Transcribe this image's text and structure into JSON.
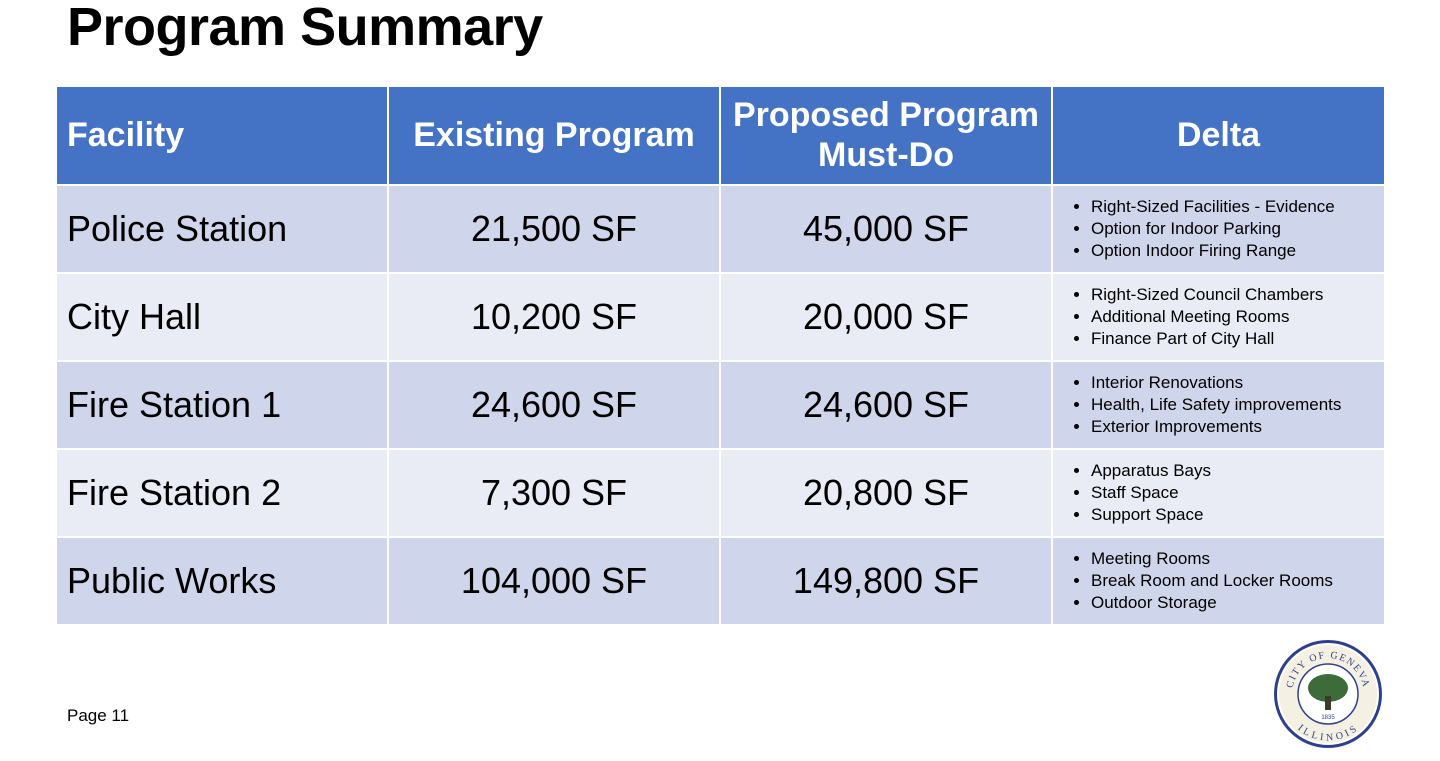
{
  "title": "Program Summary",
  "table": {
    "headers": [
      "Facility",
      "Existing Program",
      "Proposed Program Must-Do",
      "Delta"
    ],
    "rows": [
      {
        "facility": "Police Station",
        "existing": "21,500 SF",
        "proposed": "45,000 SF",
        "delta": [
          "Right-Sized Facilities - Evidence",
          "Option for Indoor Parking",
          "Option Indoor Firing Range"
        ]
      },
      {
        "facility": "City Hall",
        "existing": "10,200 SF",
        "proposed": "20,000 SF",
        "delta": [
          "Right-Sized Council Chambers",
          "Additional Meeting Rooms",
          "Finance Part of City Hall"
        ]
      },
      {
        "facility": "Fire Station 1",
        "existing": "24,600 SF",
        "proposed": "24,600 SF",
        "delta": [
          "Interior Renovations",
          "Health, Life Safety improvements",
          "Exterior Improvements"
        ]
      },
      {
        "facility": "Fire Station 2",
        "existing": "7,300 SF",
        "proposed": "20,800 SF",
        "delta": [
          "Apparatus Bays",
          "Staff Space",
          "Support Space"
        ]
      },
      {
        "facility": "Public Works",
        "existing": "104,000 SF",
        "proposed": "149,800 SF",
        "delta": [
          "Meeting Rooms",
          "Break Room and Locker Rooms",
          "Outdoor Storage"
        ]
      }
    ]
  },
  "footer": {
    "page": "Page 11"
  },
  "seal": {
    "top": "CITY OF GENEVA",
    "bottom": "ILLINOIS",
    "year": "1835"
  }
}
